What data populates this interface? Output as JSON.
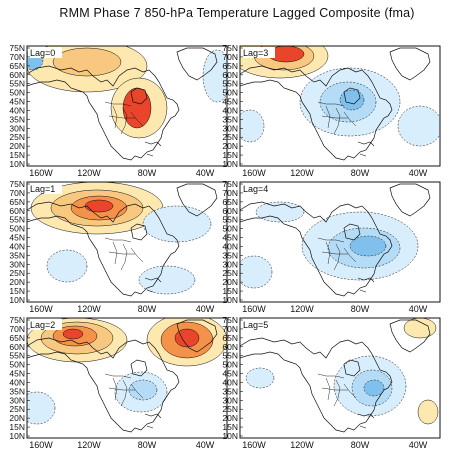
{
  "title": "RMM Phase 7 850-hPa Temperature Lagged Composite (fma)",
  "lat_labels": [
    "75N",
    "70N",
    "65N",
    "60N",
    "55N",
    "50N",
    "45N",
    "40N",
    "35N",
    "30N",
    "25N",
    "20N",
    "15N",
    "10N"
  ],
  "lon_labels": [
    "160W",
    "120W",
    "80W",
    "40W"
  ],
  "colors": {
    "warm1": "#fde8b0",
    "warm2": "#f9c880",
    "warm3": "#f4924a",
    "warm4": "#e8452a",
    "cool1": "#d9eefc",
    "cool2": "#b5dcf6",
    "cool3": "#7fc0ec",
    "cool4": "#3e8ed8",
    "land": "#ffffff",
    "contour": "#111111"
  },
  "panels": [
    {
      "label": "Lag=0",
      "side": "left"
    },
    {
      "label": "Lag=3",
      "side": "right"
    },
    {
      "label": "Lag=1",
      "side": "left"
    },
    {
      "label": "Lag=4",
      "side": "right"
    },
    {
      "label": "Lag=2",
      "side": "left"
    },
    {
      "label": "Lag=5",
      "side": "right"
    }
  ]
}
